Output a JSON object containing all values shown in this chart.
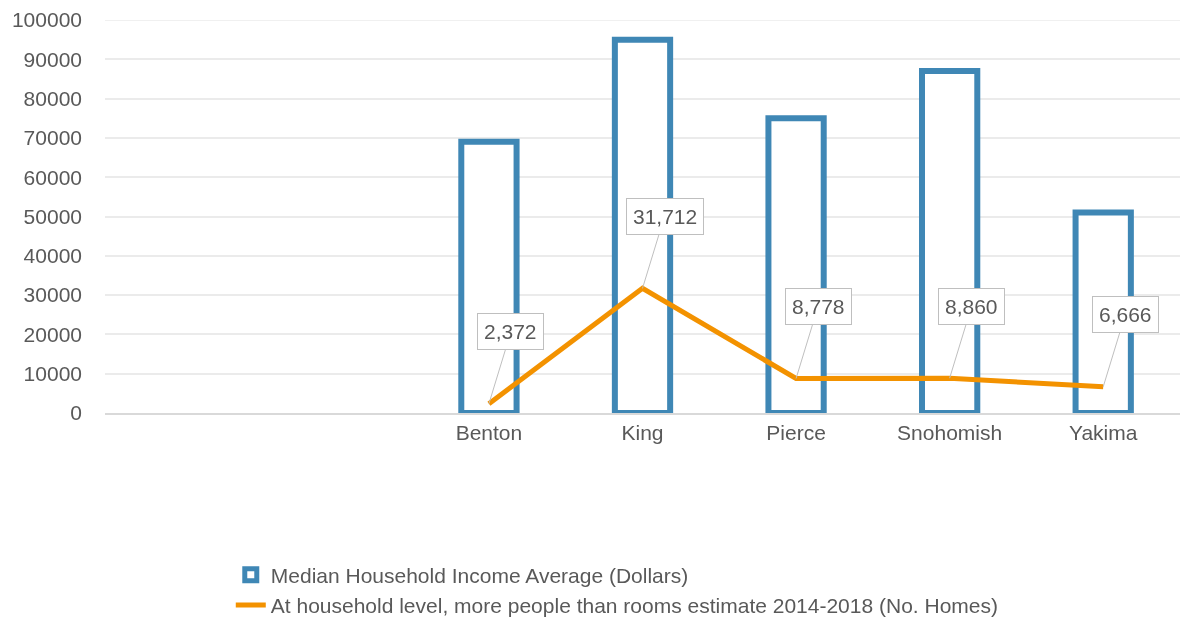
{
  "chart_data": {
    "type": "bar",
    "categories": [
      null,
      null,
      "Benton",
      "King",
      "Pierce",
      "Snohomish",
      "Yakima"
    ],
    "series": [
      {
        "name": "Median Household Income Average (Dollars)",
        "color": "#3f87b5",
        "values": [
          null,
          null,
          69000,
          95000,
          75000,
          87000,
          51000
        ]
      },
      {
        "name": "At household level, more people than rooms estimate 2014-2018 (No. Homes)",
        "type": "line",
        "color": "#f39200",
        "values": [
          null,
          null,
          2372,
          31712,
          8778,
          8860,
          6666
        ],
        "value_labels": [
          null,
          null,
          "2,372",
          "31,712",
          "8,778",
          "8,860",
          "6,666"
        ]
      }
    ],
    "ylim": [
      0,
      100000
    ],
    "yticks": [
      0,
      10000,
      20000,
      30000,
      40000,
      50000,
      60000,
      70000,
      80000,
      90000,
      100000
    ],
    "grid": "y",
    "legend": "bottom",
    "marker": "none",
    "line_style": "solid"
  }
}
